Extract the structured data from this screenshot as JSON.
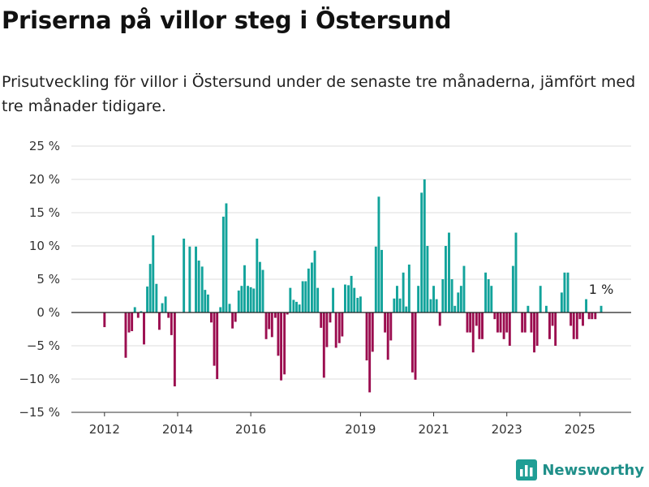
{
  "title": "Priserna på villor steg i Östersund",
  "subtitle": "Prisutveckling för villor i Östersund under de senaste tre månaderna, jämfört med tre månader tidigare.",
  "brand": {
    "name": "Newsworthy",
    "icon": "bar-chart-logo-icon",
    "color": "#1f9e95"
  },
  "chart_data": {
    "type": "bar",
    "ylim": [
      -15,
      25
    ],
    "yticks": [
      -15,
      -10,
      -5,
      0,
      5,
      10,
      15,
      20,
      25
    ],
    "ytick_labels": [
      "−15 %",
      "−10 %",
      "−5 %",
      "0 %",
      "5 %",
      "10 %",
      "15 %",
      "20 %",
      "25 %"
    ],
    "xticks": [
      {
        "x": 2012,
        "label": "2012"
      },
      {
        "x": 2014,
        "label": "2014"
      },
      {
        "x": 2016,
        "label": "2016"
      },
      {
        "x": 2019,
        "label": "2019"
      },
      {
        "x": 2021,
        "label": "2021"
      },
      {
        "x": 2023,
        "label": "2023"
      },
      {
        "x": 2025,
        "label": "2025"
      }
    ],
    "xlim": [
      2011.25,
      2026.4
    ],
    "positive_color": "#12a39b",
    "negative_color": "#9b0d4f",
    "annotation": {
      "label": "1 %",
      "x": 2025.58,
      "value": 1
    },
    "series": [
      {
        "x": 2012.0,
        "value": -2.2
      },
      {
        "x": 2012.58,
        "value": -6.8
      },
      {
        "x": 2012.67,
        "value": -3.0
      },
      {
        "x": 2012.75,
        "value": -2.8
      },
      {
        "x": 2012.83,
        "value": 0.8
      },
      {
        "x": 2012.92,
        "value": -0.8
      },
      {
        "x": 2013.0,
        "value": 0.2
      },
      {
        "x": 2013.08,
        "value": -4.8
      },
      {
        "x": 2013.17,
        "value": 3.9
      },
      {
        "x": 2013.25,
        "value": 7.3
      },
      {
        "x": 2013.33,
        "value": 11.6
      },
      {
        "x": 2013.42,
        "value": 4.3
      },
      {
        "x": 2013.5,
        "value": -2.6
      },
      {
        "x": 2013.58,
        "value": 1.4
      },
      {
        "x": 2013.67,
        "value": 2.4
      },
      {
        "x": 2013.75,
        "value": -0.8
      },
      {
        "x": 2013.83,
        "value": -3.4
      },
      {
        "x": 2013.92,
        "value": -11.1
      },
      {
        "x": 2014.17,
        "value": 11.1
      },
      {
        "x": 2014.33,
        "value": 9.9
      },
      {
        "x": 2014.5,
        "value": 9.9
      },
      {
        "x": 2014.58,
        "value": 7.8
      },
      {
        "x": 2014.67,
        "value": 6.9
      },
      {
        "x": 2014.75,
        "value": 3.4
      },
      {
        "x": 2014.83,
        "value": 2.7
      },
      {
        "x": 2014.92,
        "value": -1.5
      },
      {
        "x": 2015.0,
        "value": -8.0
      },
      {
        "x": 2015.08,
        "value": -10.0
      },
      {
        "x": 2015.17,
        "value": 0.8
      },
      {
        "x": 2015.25,
        "value": 14.4
      },
      {
        "x": 2015.33,
        "value": 16.4
      },
      {
        "x": 2015.42,
        "value": 1.3
      },
      {
        "x": 2015.5,
        "value": -2.4
      },
      {
        "x": 2015.58,
        "value": -1.4
      },
      {
        "x": 2015.67,
        "value": 3.3
      },
      {
        "x": 2015.75,
        "value": 4.0
      },
      {
        "x": 2015.83,
        "value": 7.1
      },
      {
        "x": 2015.92,
        "value": 4.0
      },
      {
        "x": 2016.0,
        "value": 3.8
      },
      {
        "x": 2016.08,
        "value": 3.6
      },
      {
        "x": 2016.17,
        "value": 11.1
      },
      {
        "x": 2016.25,
        "value": 7.6
      },
      {
        "x": 2016.33,
        "value": 6.4
      },
      {
        "x": 2016.42,
        "value": -4.0
      },
      {
        "x": 2016.5,
        "value": -2.5
      },
      {
        "x": 2016.58,
        "value": -3.7
      },
      {
        "x": 2016.67,
        "value": -0.8
      },
      {
        "x": 2016.75,
        "value": -6.5
      },
      {
        "x": 2016.83,
        "value": -10.2
      },
      {
        "x": 2016.92,
        "value": -9.3
      },
      {
        "x": 2017.0,
        "value": -0.3
      },
      {
        "x": 2017.08,
        "value": 3.7
      },
      {
        "x": 2017.17,
        "value": 1.9
      },
      {
        "x": 2017.25,
        "value": 1.6
      },
      {
        "x": 2017.33,
        "value": 1.2
      },
      {
        "x": 2017.42,
        "value": 4.7
      },
      {
        "x": 2017.5,
        "value": 4.7
      },
      {
        "x": 2017.58,
        "value": 6.6
      },
      {
        "x": 2017.67,
        "value": 7.5
      },
      {
        "x": 2017.75,
        "value": 9.3
      },
      {
        "x": 2017.83,
        "value": 3.7
      },
      {
        "x": 2017.92,
        "value": -2.3
      },
      {
        "x": 2018.0,
        "value": -9.8
      },
      {
        "x": 2018.08,
        "value": -5.2
      },
      {
        "x": 2018.17,
        "value": -1.5
      },
      {
        "x": 2018.25,
        "value": 3.7
      },
      {
        "x": 2018.33,
        "value": -5.3
      },
      {
        "x": 2018.42,
        "value": -4.6
      },
      {
        "x": 2018.5,
        "value": -3.6
      },
      {
        "x": 2018.58,
        "value": 4.2
      },
      {
        "x": 2018.67,
        "value": 4.1
      },
      {
        "x": 2018.75,
        "value": 5.5
      },
      {
        "x": 2018.83,
        "value": 3.7
      },
      {
        "x": 2018.92,
        "value": 2.2
      },
      {
        "x": 2019.0,
        "value": 2.4
      },
      {
        "x": 2019.17,
        "value": -7.2
      },
      {
        "x": 2019.25,
        "value": -12.0
      },
      {
        "x": 2019.33,
        "value": -5.9
      },
      {
        "x": 2019.42,
        "value": 9.9
      },
      {
        "x": 2019.5,
        "value": 17.4
      },
      {
        "x": 2019.58,
        "value": 9.4
      },
      {
        "x": 2019.67,
        "value": -3.0
      },
      {
        "x": 2019.75,
        "value": -7.1
      },
      {
        "x": 2019.83,
        "value": -4.2
      },
      {
        "x": 2019.92,
        "value": 2.1
      },
      {
        "x": 2020.0,
        "value": 4.0
      },
      {
        "x": 2020.08,
        "value": 2.1
      },
      {
        "x": 2020.17,
        "value": 6.0
      },
      {
        "x": 2020.25,
        "value": 0.9
      },
      {
        "x": 2020.33,
        "value": 7.2
      },
      {
        "x": 2020.42,
        "value": -9.0
      },
      {
        "x": 2020.5,
        "value": -10.1
      },
      {
        "x": 2020.58,
        "value": 4.0
      },
      {
        "x": 2020.67,
        "value": 18.0
      },
      {
        "x": 2020.75,
        "value": 20.0
      },
      {
        "x": 2020.83,
        "value": 10.0
      },
      {
        "x": 2020.92,
        "value": 2.0
      },
      {
        "x": 2021.0,
        "value": 4.0
      },
      {
        "x": 2021.08,
        "value": 2.0
      },
      {
        "x": 2021.17,
        "value": -2.0
      },
      {
        "x": 2021.25,
        "value": 5.0
      },
      {
        "x": 2021.33,
        "value": 10.0
      },
      {
        "x": 2021.42,
        "value": 12.0
      },
      {
        "x": 2021.5,
        "value": 5.0
      },
      {
        "x": 2021.58,
        "value": 1.0
      },
      {
        "x": 2021.67,
        "value": 3.0
      },
      {
        "x": 2021.75,
        "value": 4.0
      },
      {
        "x": 2021.83,
        "value": 7.0
      },
      {
        "x": 2021.92,
        "value": -3.0
      },
      {
        "x": 2022.0,
        "value": -3.0
      },
      {
        "x": 2022.08,
        "value": -6.0
      },
      {
        "x": 2022.17,
        "value": -2.0
      },
      {
        "x": 2022.25,
        "value": -4.0
      },
      {
        "x": 2022.33,
        "value": -4.0
      },
      {
        "x": 2022.42,
        "value": 6.0
      },
      {
        "x": 2022.5,
        "value": 5.0
      },
      {
        "x": 2022.58,
        "value": 4.0
      },
      {
        "x": 2022.67,
        "value": -1.0
      },
      {
        "x": 2022.75,
        "value": -3.0
      },
      {
        "x": 2022.83,
        "value": -3.0
      },
      {
        "x": 2022.92,
        "value": -4.0
      },
      {
        "x": 2023.0,
        "value": -3.0
      },
      {
        "x": 2023.08,
        "value": -5.0
      },
      {
        "x": 2023.17,
        "value": 7.0
      },
      {
        "x": 2023.25,
        "value": 12.0
      },
      {
        "x": 2023.42,
        "value": -3.0
      },
      {
        "x": 2023.5,
        "value": -3.0
      },
      {
        "x": 2023.58,
        "value": 1.0
      },
      {
        "x": 2023.67,
        "value": -3.0
      },
      {
        "x": 2023.75,
        "value": -6.0
      },
      {
        "x": 2023.83,
        "value": -5.0
      },
      {
        "x": 2023.92,
        "value": 4.0
      },
      {
        "x": 2024.08,
        "value": 1.0
      },
      {
        "x": 2024.17,
        "value": -4.0
      },
      {
        "x": 2024.25,
        "value": -2.0
      },
      {
        "x": 2024.33,
        "value": -5.0
      },
      {
        "x": 2024.5,
        "value": 3.0
      },
      {
        "x": 2024.58,
        "value": 6.0
      },
      {
        "x": 2024.67,
        "value": 6.0
      },
      {
        "x": 2024.75,
        "value": -2.0
      },
      {
        "x": 2024.83,
        "value": -4.0
      },
      {
        "x": 2024.92,
        "value": -4.0
      },
      {
        "x": 2025.0,
        "value": -1.0
      },
      {
        "x": 2025.08,
        "value": -2.0
      },
      {
        "x": 2025.17,
        "value": 2.0
      },
      {
        "x": 2025.25,
        "value": -1.0
      },
      {
        "x": 2025.33,
        "value": -1.0
      },
      {
        "x": 2025.42,
        "value": -1.0
      },
      {
        "x": 2025.58,
        "value": 1.0
      }
    ]
  }
}
